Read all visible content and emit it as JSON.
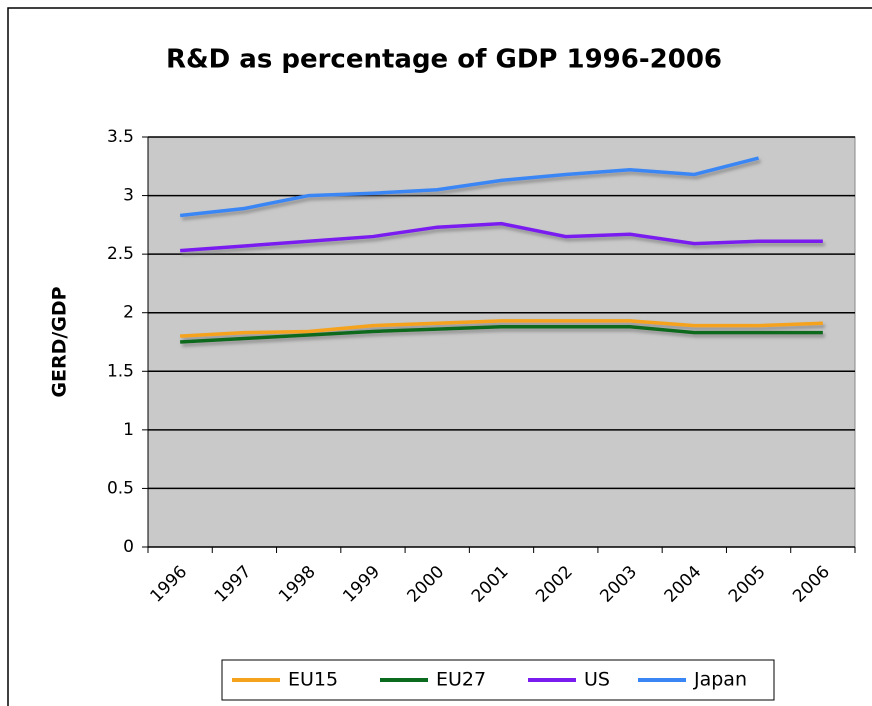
{
  "chart_data": {
    "type": "line",
    "title": "R&D as percentage of GDP 1996-2006",
    "y_label": "GERD/GDP",
    "categories": [
      "1996",
      "1997",
      "1998",
      "1999",
      "2000",
      "2001",
      "2002",
      "2003",
      "2004",
      "2005",
      "2006"
    ],
    "series": [
      {
        "name": "EU15",
        "color": "#f5a21c",
        "values": [
          1.8,
          1.83,
          1.84,
          1.89,
          1.91,
          1.93,
          1.93,
          1.93,
          1.89,
          1.89,
          1.91
        ]
      },
      {
        "name": "EU27",
        "color": "#0a6b1e",
        "values": [
          1.75,
          1.78,
          1.81,
          1.84,
          1.86,
          1.88,
          1.88,
          1.88,
          1.83,
          1.83,
          1.83
        ]
      },
      {
        "name": "US",
        "color": "#7a1cf0",
        "values": [
          2.53,
          2.57,
          2.61,
          2.65,
          2.73,
          2.76,
          2.65,
          2.67,
          2.59,
          2.61,
          2.61
        ]
      },
      {
        "name": "Japan",
        "color": "#3a86f5",
        "values": [
          2.83,
          2.89,
          3.0,
          3.02,
          3.05,
          3.13,
          3.18,
          3.22,
          3.18,
          3.32,
          null
        ]
      }
    ],
    "ylim": [
      0,
      3.5
    ],
    "yticks": [
      0,
      0.5,
      1,
      1.5,
      2,
      2.5,
      3,
      3.5
    ],
    "grid": true,
    "legend": "bottom"
  }
}
